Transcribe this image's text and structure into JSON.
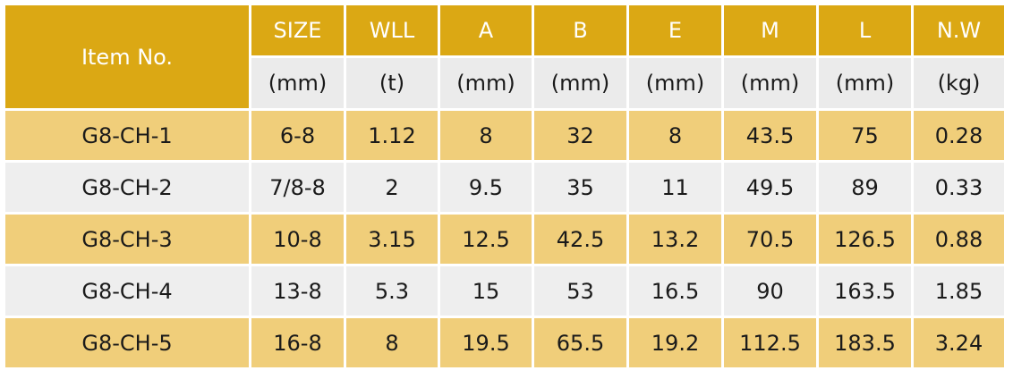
{
  "table": {
    "item_header": "Item No.",
    "columns": [
      {
        "key": "size",
        "label": "SIZE",
        "unit": "(mm)"
      },
      {
        "key": "wll",
        "label": "WLL",
        "unit": "(t)"
      },
      {
        "key": "a",
        "label": "A",
        "unit": "(mm)"
      },
      {
        "key": "b",
        "label": "B",
        "unit": "(mm)"
      },
      {
        "key": "e",
        "label": "E",
        "unit": "(mm)"
      },
      {
        "key": "m",
        "label": "M",
        "unit": "(mm)"
      },
      {
        "key": "l",
        "label": "L",
        "unit": "(mm)"
      },
      {
        "key": "nw",
        "label": "N.W",
        "unit": "(kg)"
      }
    ],
    "rows": [
      {
        "item": "G8-CH-1",
        "values": [
          "6-8",
          "1.12",
          "8",
          "32",
          "8",
          "43.5",
          "75",
          "0.28"
        ]
      },
      {
        "item": "G8-CH-2",
        "values": [
          "7/8-8",
          "2",
          "9.5",
          "35",
          "11",
          "49.5",
          "89",
          "0.33"
        ]
      },
      {
        "item": "G8-CH-3",
        "values": [
          "10-8",
          "3.15",
          "12.5",
          "42.5",
          "13.2",
          "70.5",
          "126.5",
          "0.88"
        ]
      },
      {
        "item": "G8-CH-4",
        "values": [
          "13-8",
          "5.3",
          "15",
          "53",
          "16.5",
          "90",
          "163.5",
          "1.85"
        ]
      },
      {
        "item": "G8-CH-5",
        "values": [
          "16-8",
          "8",
          "19.5",
          "65.5",
          "19.2",
          "112.5",
          "183.5",
          "3.24"
        ]
      }
    ]
  },
  "colors": {
    "header": "#dba814",
    "unit_row": "#ebebeb",
    "row_odd": "#f0ce7a",
    "row_even": "#eeeeee"
  }
}
